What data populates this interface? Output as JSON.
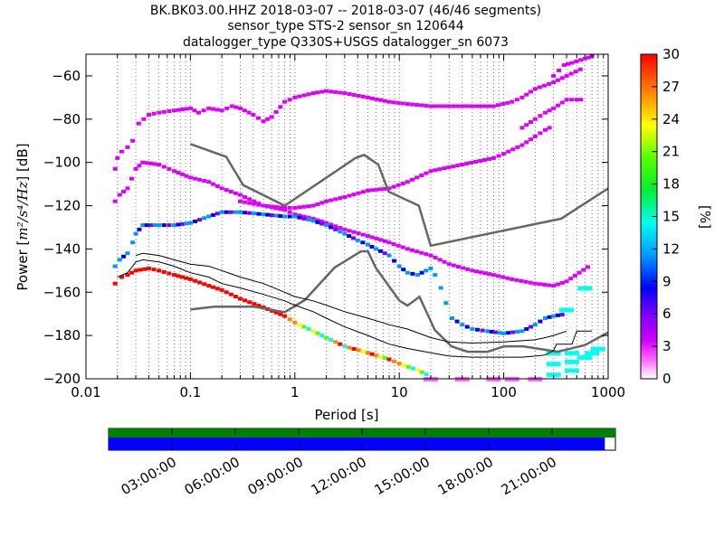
{
  "chart_data": [
    {
      "type": "heatmap",
      "title_lines": [
        "BK.BK03.00.HHZ   2018-03-07 -- 2018-03-07  (46/46 segments)",
        "sensor_type STS-2 sensor_sn 120644",
        "datalogger_type Q330S+USGS datalogger_sn 6073"
      ],
      "xlabel": "Period [s]",
      "ylabel_prefix": "Power [",
      "ylabel_units": "m²/s⁴/Hz",
      "ylabel_suffix": "] [dB]",
      "xscale": "log",
      "xlim": [
        0.01,
        1000
      ],
      "ylim": [
        -200,
        -50
      ],
      "x_ticks": [
        {
          "value": 0.01,
          "label": "0.01"
        },
        {
          "value": 0.1,
          "label": "0.1"
        },
        {
          "value": 1,
          "label": "1"
        },
        {
          "value": 10,
          "label": "10"
        },
        {
          "value": 100,
          "label": "100"
        },
        {
          "value": 1000,
          "label": "1000"
        }
      ],
      "y_ticks": [
        {
          "value": -60,
          "label": "−60"
        },
        {
          "value": -80,
          "label": "−80"
        },
        {
          "value": -100,
          "label": "−100"
        },
        {
          "value": -120,
          "label": "−120"
        },
        {
          "value": -140,
          "label": "−140"
        },
        {
          "value": -160,
          "label": "−160"
        },
        {
          "value": -180,
          "label": "−180"
        },
        {
          "value": -200,
          "label": "−200"
        }
      ],
      "colorbar": {
        "label": "[%]",
        "range": [
          0,
          30
        ],
        "ticks": [
          "0",
          "3",
          "6",
          "9",
          "12",
          "15",
          "18",
          "21",
          "24",
          "27",
          "30"
        ]
      },
      "pdf_tracks": [
        {
          "name": "upper",
          "points": [
            [
              0.019,
              -103
            ],
            [
              0.02,
              -98
            ],
            [
              0.022,
              -95
            ],
            [
              0.025,
              -93
            ],
            [
              0.028,
              -90
            ],
            [
              0.032,
              -82
            ],
            [
              0.04,
              -78
            ],
            [
              0.05,
              -77
            ],
            [
              0.07,
              -76
            ],
            [
              0.1,
              -75
            ],
            [
              0.12,
              -77
            ],
            [
              0.15,
              -75
            ],
            [
              0.2,
              -76
            ],
            [
              0.25,
              -74
            ],
            [
              0.3,
              -75
            ],
            [
              0.4,
              -78
            ],
            [
              0.5,
              -81
            ],
            [
              0.6,
              -79
            ],
            [
              0.8,
              -72
            ],
            [
              1.0,
              -70
            ],
            [
              1.5,
              -68
            ],
            [
              2.0,
              -67
            ],
            [
              3.0,
              -68
            ],
            [
              5.0,
              -70
            ],
            [
              8.0,
              -72
            ],
            [
              12.0,
              -73
            ],
            [
              20.0,
              -74
            ],
            [
              40.0,
              -74
            ],
            [
              80.0,
              -74
            ],
            [
              120.0,
              -72
            ],
            [
              150.0,
              -70
            ],
            [
              200.0,
              -66
            ],
            [
              300.0,
              -63
            ],
            [
              400.0,
              -60
            ],
            [
              600.0,
              -56
            ]
          ],
          "pct": 3
        },
        {
          "name": "upper-high",
          "points": [
            [
              300,
              -60
            ],
            [
              380,
              -55
            ],
            [
              450,
              -54
            ],
            [
              600,
              -52
            ],
            [
              700,
              -51
            ],
            [
              800,
              -51
            ]
          ],
          "pct": 2
        },
        {
          "name": "upper-low",
          "points": [
            [
              150,
              -84
            ],
            [
              200,
              -80
            ],
            [
              250,
              -77
            ],
            [
              300,
              -75
            ],
            [
              400,
              -71
            ],
            [
              500,
              -71
            ],
            [
              600,
              -71
            ]
          ],
          "pct": 2
        },
        {
          "name": "middle",
          "points": [
            [
              0.019,
              -118
            ],
            [
              0.021,
              -115
            ],
            [
              0.025,
              -112
            ],
            [
              0.03,
              -103
            ],
            [
              0.035,
              -100
            ],
            [
              0.05,
              -101
            ],
            [
              0.07,
              -104
            ],
            [
              0.1,
              -107
            ],
            [
              0.15,
              -109
            ],
            [
              0.2,
              -112
            ],
            [
              0.3,
              -115
            ],
            [
              0.5,
              -120
            ],
            [
              0.8,
              -121
            ],
            [
              1.0,
              -121
            ],
            [
              1.5,
              -120
            ],
            [
              2.0,
              -118
            ],
            [
              3.0,
              -116
            ],
            [
              5.0,
              -113
            ],
            [
              8.0,
              -112
            ],
            [
              12.0,
              -109
            ],
            [
              20.0,
              -104
            ],
            [
              40.0,
              -101
            ],
            [
              80.0,
              -98
            ],
            [
              100.0,
              -96
            ],
            [
              150.0,
              -92
            ],
            [
              200.0,
              -88
            ],
            [
              250.0,
              -85
            ],
            [
              300.0,
              -83
            ]
          ],
          "pct": 3
        },
        {
          "name": "lower-magenta",
          "points": [
            [
              0.3,
              -118
            ],
            [
              0.5,
              -120
            ],
            [
              0.8,
              -122
            ],
            [
              1.0,
              -124
            ],
            [
              1.5,
              -126
            ],
            [
              2.0,
              -128
            ],
            [
              3.0,
              -131
            ],
            [
              5.0,
              -134
            ],
            [
              8.0,
              -137
            ],
            [
              12.0,
              -140
            ],
            [
              20.0,
              -143
            ],
            [
              30.0,
              -147
            ],
            [
              50.0,
              -150
            ],
            [
              80.0,
              -152
            ],
            [
              120.0,
              -154
            ],
            [
              200.0,
              -156
            ],
            [
              300.0,
              -157
            ],
            [
              400.0,
              -155
            ],
            [
              700.0,
              -147
            ]
          ],
          "pct": 2
        },
        {
          "name": "mode-blue",
          "points": [
            [
              0.019,
              -148
            ],
            [
              0.021,
              -145
            ],
            [
              0.025,
              -142
            ],
            [
              0.028,
              -137
            ],
            [
              0.03,
              -133
            ],
            [
              0.035,
              -129
            ],
            [
              0.05,
              -129
            ],
            [
              0.07,
              -129
            ],
            [
              0.1,
              -128
            ],
            [
              0.15,
              -125
            ],
            [
              0.2,
              -123
            ],
            [
              0.3,
              -123
            ],
            [
              0.5,
              -124
            ],
            [
              0.8,
              -125
            ],
            [
              1.0,
              -125
            ],
            [
              1.5,
              -127
            ],
            [
              2.0,
              -129
            ],
            [
              3.0,
              -133
            ],
            [
              4.0,
              -136
            ],
            [
              5.0,
              -138
            ],
            [
              6.0,
              -140
            ],
            [
              8.0,
              -143
            ],
            [
              10.0,
              -148
            ],
            [
              12.0,
              -151
            ],
            [
              15.0,
              -152
            ],
            [
              18.0,
              -150
            ],
            [
              20.0,
              -149
            ],
            [
              22.0,
              -152
            ],
            [
              25.0,
              -158
            ],
            [
              28.0,
              -165
            ],
            [
              32.0,
              -172
            ],
            [
              40.0,
              -175
            ],
            [
              50.0,
              -177
            ],
            [
              70.0,
              -178
            ],
            [
              100.0,
              -179
            ],
            [
              150.0,
              -178
            ],
            [
              200.0,
              -175
            ],
            [
              250.0,
              -172
            ],
            [
              300.0,
              -171
            ],
            [
              400.0,
              -170
            ]
          ],
          "pct": 7
        },
        {
          "name": "deep",
          "points": [
            [
              20,
              -200
            ],
            [
              40,
              -200
            ],
            [
              80,
              -200
            ],
            [
              120,
              -200
            ],
            [
              200,
              -200
            ]
          ],
          "pct": 1
        },
        {
          "name": "low-noise-diag",
          "points": [
            [
              0.019,
              -156
            ],
            [
              0.022,
              -153
            ],
            [
              0.025,
              -152
            ],
            [
              0.03,
              -150
            ],
            [
              0.04,
              -149
            ],
            [
              0.05,
              -150
            ],
            [
              0.07,
              -152
            ],
            [
              0.1,
              -154
            ],
            [
              0.15,
              -157
            ],
            [
              0.2,
              -159
            ],
            [
              0.3,
              -163
            ],
            [
              0.5,
              -167
            ],
            [
              0.8,
              -171
            ],
            [
              1.0,
              -174
            ],
            [
              1.5,
              -178
            ],
            [
              2.0,
              -181
            ],
            [
              3.0,
              -185
            ],
            [
              5.0,
              -188
            ],
            [
              8.0,
              -191
            ],
            [
              10.0,
              -193
            ],
            [
              15.0,
              -196
            ],
            [
              20.0,
              -199
            ]
          ],
          "pct": 6
        },
        {
          "name": "lp-bins",
          "points": [
            [
              300,
              -198
            ],
            [
              300,
              -193
            ],
            [
              300,
              -188
            ],
            [
              450,
              -196
            ],
            [
              450,
              -192
            ],
            [
              450,
              -188
            ],
            [
              600,
              -190
            ],
            [
              600,
              -158
            ],
            [
              700,
              -188
            ],
            [
              800,
              -186
            ],
            [
              400,
              -168
            ]
          ],
          "pct": 12
        }
      ],
      "nlnm": [
        [
          0.1,
          -168
        ],
        [
          0.17,
          -166.7
        ],
        [
          0.4,
          -166.7
        ],
        [
          0.8,
          -169.2
        ],
        [
          1.24,
          -163.7
        ],
        [
          2.4,
          -148.6
        ],
        [
          4.3,
          -141.1
        ],
        [
          5.0,
          -141.1
        ],
        [
          6.0,
          -149.0
        ],
        [
          10.0,
          -163.8
        ],
        [
          12.0,
          -166.2
        ],
        [
          15.6,
          -162.1
        ],
        [
          21.9,
          -177.5
        ],
        [
          31.6,
          -185.0
        ],
        [
          45.0,
          -187.5
        ],
        [
          70.0,
          -187.5
        ],
        [
          101.0,
          -185.0
        ],
        [
          154.0,
          -185.0
        ],
        [
          328.0,
          -187.5
        ],
        [
          600.0,
          -184.4
        ],
        [
          1000.0,
          -178.6
        ]
      ],
      "nhnm": [
        [
          0.1,
          -91.5
        ],
        [
          0.22,
          -97.4
        ],
        [
          0.32,
          -110.5
        ],
        [
          0.8,
          -120.0
        ],
        [
          3.8,
          -98.0
        ],
        [
          4.6,
          -96.5
        ],
        [
          6.3,
          -101.0
        ],
        [
          7.9,
          -113.5
        ],
        [
          15.4,
          -120.0
        ],
        [
          20.0,
          -138.5
        ],
        [
          354.8,
          -126.0
        ],
        [
          1000.0,
          -112
        ]
      ],
      "mean_curve": [
        [
          0.03,
          -143
        ],
        [
          0.035,
          -142
        ],
        [
          0.05,
          -143
        ],
        [
          0.07,
          -145
        ],
        [
          0.1,
          -147
        ],
        [
          0.15,
          -148
        ],
        [
          0.2,
          -150
        ],
        [
          0.3,
          -153
        ],
        [
          0.5,
          -156
        ],
        [
          0.8,
          -160
        ],
        [
          1.0,
          -162
        ],
        [
          1.5,
          -164
        ],
        [
          2.0,
          -166
        ],
        [
          3.0,
          -169
        ],
        [
          5.0,
          -172
        ],
        [
          8.0,
          -175
        ],
        [
          12.0,
          -177
        ],
        [
          20.0,
          -181
        ],
        [
          30.0,
          -183
        ],
        [
          50.0,
          -183.5
        ],
        [
          100.0,
          -183
        ],
        [
          200.0,
          -182
        ],
        [
          250.0,
          -181
        ],
        [
          300.0,
          -180
        ],
        [
          400.0,
          -178
        ]
      ],
      "mode_curve": [
        [
          0.02,
          -153
        ],
        [
          0.025,
          -151
        ],
        [
          0.03,
          -146
        ],
        [
          0.035,
          -145
        ],
        [
          0.05,
          -146
        ],
        [
          0.07,
          -148
        ],
        [
          0.1,
          -151
        ],
        [
          0.15,
          -153
        ],
        [
          0.2,
          -156
        ],
        [
          0.3,
          -158
        ],
        [
          0.5,
          -161
        ],
        [
          0.8,
          -164
        ],
        [
          1.0,
          -166
        ],
        [
          1.5,
          -169
        ],
        [
          2.0,
          -172
        ],
        [
          3.0,
          -176
        ],
        [
          5.0,
          -180
        ],
        [
          8.0,
          -184
        ],
        [
          12.0,
          -186
        ],
        [
          20.0,
          -188
        ],
        [
          30.0,
          -189.5
        ],
        [
          50.0,
          -190
        ],
        [
          100.0,
          -190
        ],
        [
          150.0,
          -190
        ],
        [
          200.0,
          -189.5
        ],
        [
          250.0,
          -189
        ],
        [
          300.0,
          -187
        ],
        [
          320.0,
          -184
        ],
        [
          450.0,
          -184
        ],
        [
          500.0,
          -178
        ],
        [
          700.0,
          -178
        ]
      ]
    },
    {
      "type": "timeline",
      "time_ticks": [
        "03:00:00",
        "06:00:00",
        "09:00:00",
        "12:00:00",
        "15:00:00",
        "18:00:00",
        "21:00:00"
      ],
      "time_range_hours": [
        0,
        24
      ],
      "data_coverage_hours": [
        0,
        23.5
      ],
      "colors": {
        "coverage_top": "#008000",
        "coverage": "#0000ff"
      }
    }
  ]
}
